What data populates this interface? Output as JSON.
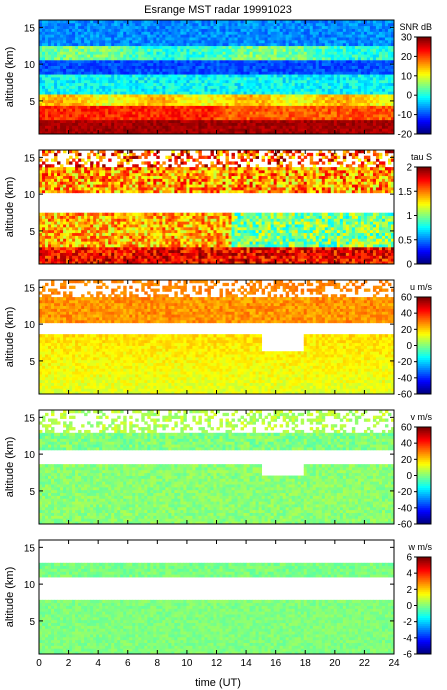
{
  "title": "Esrange MST radar 19991023",
  "xlabel": "time (UT)",
  "x_ticks": [
    0,
    2,
    4,
    6,
    8,
    10,
    12,
    14,
    16,
    18,
    20,
    22,
    24
  ],
  "chart_data": [
    {
      "type": "heatmap",
      "ylabel": "altitude (km)",
      "quantity": "SNR dB",
      "x": [
        0,
        24
      ],
      "ylim": [
        0.5,
        16
      ],
      "y_ticks": [
        5,
        10,
        15
      ],
      "colorbar": {
        "label": "SNR dB",
        "range": [
          -20,
          30
        ],
        "ticks": [
          -20,
          -10,
          0,
          10,
          20,
          30
        ]
      },
      "pattern": "snr"
    },
    {
      "type": "heatmap",
      "ylabel": "altitude (km)",
      "quantity": "tau S",
      "x": [
        0,
        24
      ],
      "ylim": [
        0.5,
        16
      ],
      "y_ticks": [
        5,
        10,
        15
      ],
      "colorbar": {
        "label": "tau S",
        "range": [
          0,
          2
        ],
        "ticks": [
          0,
          0.5,
          1,
          1.5,
          2
        ]
      },
      "pattern": "tau"
    },
    {
      "type": "heatmap",
      "ylabel": "altitude (km)",
      "quantity": "u m/s",
      "x": [
        0,
        24
      ],
      "ylim": [
        0.5,
        16
      ],
      "y_ticks": [
        5,
        10,
        15
      ],
      "colorbar": {
        "label": "u m/s",
        "range": [
          -60,
          60
        ],
        "ticks": [
          -60,
          -40,
          -20,
          0,
          20,
          40,
          60
        ]
      },
      "pattern": "u"
    },
    {
      "type": "heatmap",
      "ylabel": "altitude (km)",
      "quantity": "v m/s",
      "x": [
        0,
        24
      ],
      "ylim": [
        0.5,
        16
      ],
      "y_ticks": [
        5,
        10,
        15
      ],
      "colorbar": {
        "label": "v m/s",
        "range": [
          -60,
          60
        ],
        "ticks": [
          -60,
          -40,
          -20,
          0,
          20,
          40,
          60
        ]
      },
      "pattern": "v"
    },
    {
      "type": "heatmap",
      "ylabel": "altitude (km)",
      "quantity": "w m/s",
      "x": [
        0,
        24
      ],
      "ylim": [
        0.5,
        16
      ],
      "y_ticks": [
        5,
        10,
        15
      ],
      "colorbar": {
        "label": "w m/s",
        "range": [
          -6,
          6
        ],
        "ticks": [
          -6,
          -4,
          -2,
          0,
          2,
          4,
          6
        ]
      },
      "pattern": "w"
    }
  ]
}
